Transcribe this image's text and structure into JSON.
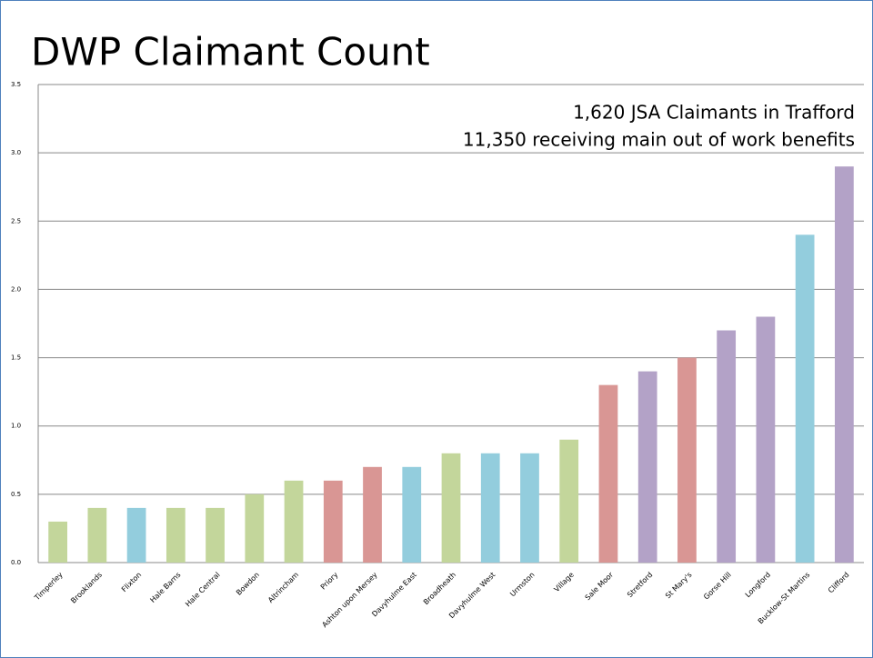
{
  "chart_data": {
    "type": "bar",
    "title": "DWP Claimant Count",
    "annotations": [
      "1,620 JSA Claimants in Trafford",
      "11,350 receiving main out of work benefits"
    ],
    "categories": [
      "Timperley",
      "Brooklands",
      "Flixton",
      "Hale Barns",
      "Hale Central",
      "Bowdon",
      "Altrincham",
      "Priory",
      "Ashton upon Mersey",
      "Davyhulme East",
      "Broadheath",
      "Davyhulme West",
      "Urmston",
      "Village",
      "Sale Moor",
      "Stretford",
      "St Mary's",
      "Gorse Hill",
      "Longford",
      "Bucklow-St Martins",
      "Clifford"
    ],
    "values": [
      0.3,
      0.4,
      0.4,
      0.4,
      0.4,
      0.5,
      0.6,
      0.6,
      0.7,
      0.7,
      0.8,
      0.8,
      0.8,
      0.9,
      1.3,
      1.4,
      1.5,
      1.7,
      1.8,
      2.4,
      2.9
    ],
    "colors": [
      "#c3d69b",
      "#c3d69b",
      "#93cddd",
      "#c3d69b",
      "#c3d69b",
      "#c3d69b",
      "#c3d69b",
      "#d99694",
      "#d99694",
      "#93cddd",
      "#c3d69b",
      "#93cddd",
      "#93cddd",
      "#c3d69b",
      "#d99694",
      "#b3a2c7",
      "#d99694",
      "#b3a2c7",
      "#b3a2c7",
      "#93cddd",
      "#b3a2c7"
    ],
    "ylim": [
      0,
      3.5
    ],
    "yticks": [
      {
        "value": 0,
        "label": "0.0"
      },
      0.5,
      {
        "value": 1,
        "label": "1.0"
      },
      1.5,
      {
        "value": 2,
        "label": "2.0"
      },
      2.5,
      {
        "value": 3,
        "label": "3.0"
      },
      3.5
    ],
    "grid": true
  }
}
